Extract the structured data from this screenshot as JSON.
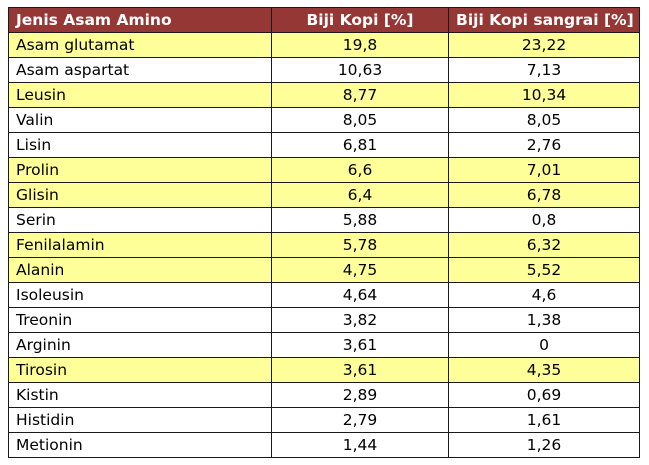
{
  "table": {
    "headers": [
      "Jenis Asam Amino",
      "Biji Kopi [%]",
      "Biji Kopi sangrai [%]"
    ],
    "rows": [
      {
        "name": "Asam glutamat",
        "raw": "19,8",
        "roasted": "23,22",
        "highlight": true
      },
      {
        "name": "Asam aspartat",
        "raw": "10,63",
        "roasted": "7,13",
        "highlight": false
      },
      {
        "name": "Leusin",
        "raw": "8,77",
        "roasted": "10,34",
        "highlight": true
      },
      {
        "name": "Valin",
        "raw": "8,05",
        "roasted": "8,05",
        "highlight": false
      },
      {
        "name": "Lisin",
        "raw": "6,81",
        "roasted": "2,76",
        "highlight": false
      },
      {
        "name": "Prolin",
        "raw": "6,6",
        "roasted": "7,01",
        "highlight": true
      },
      {
        "name": "Glisin",
        "raw": "6,4",
        "roasted": "6,78",
        "highlight": true
      },
      {
        "name": "Serin",
        "raw": "5,88",
        "roasted": "0,8",
        "highlight": false
      },
      {
        "name": "Fenilalamin",
        "raw": "5,78",
        "roasted": "6,32",
        "highlight": true
      },
      {
        "name": "Alanin",
        "raw": "4,75",
        "roasted": "5,52",
        "highlight": true
      },
      {
        "name": "Isoleusin",
        "raw": "4,64",
        "roasted": "4,6",
        "highlight": false
      },
      {
        "name": "Treonin",
        "raw": "3,82",
        "roasted": "1,38",
        "highlight": false
      },
      {
        "name": "Arginin",
        "raw": "3,61",
        "roasted": "0",
        "highlight": false
      },
      {
        "name": "Tirosin",
        "raw": "3,61",
        "roasted": "4,35",
        "highlight": true
      },
      {
        "name": "Kistin",
        "raw": "2,89",
        "roasted": "0,69",
        "highlight": false
      },
      {
        "name": "Histidin",
        "raw": "2,79",
        "roasted": "1,61",
        "highlight": false
      },
      {
        "name": "Metionin",
        "raw": "1,44",
        "roasted": "1,26",
        "highlight": false
      }
    ]
  },
  "colors": {
    "header_bg": "#953735",
    "header_text": "#ffffff",
    "highlight_row": "#ffff99",
    "border": "#1a1a1a"
  }
}
